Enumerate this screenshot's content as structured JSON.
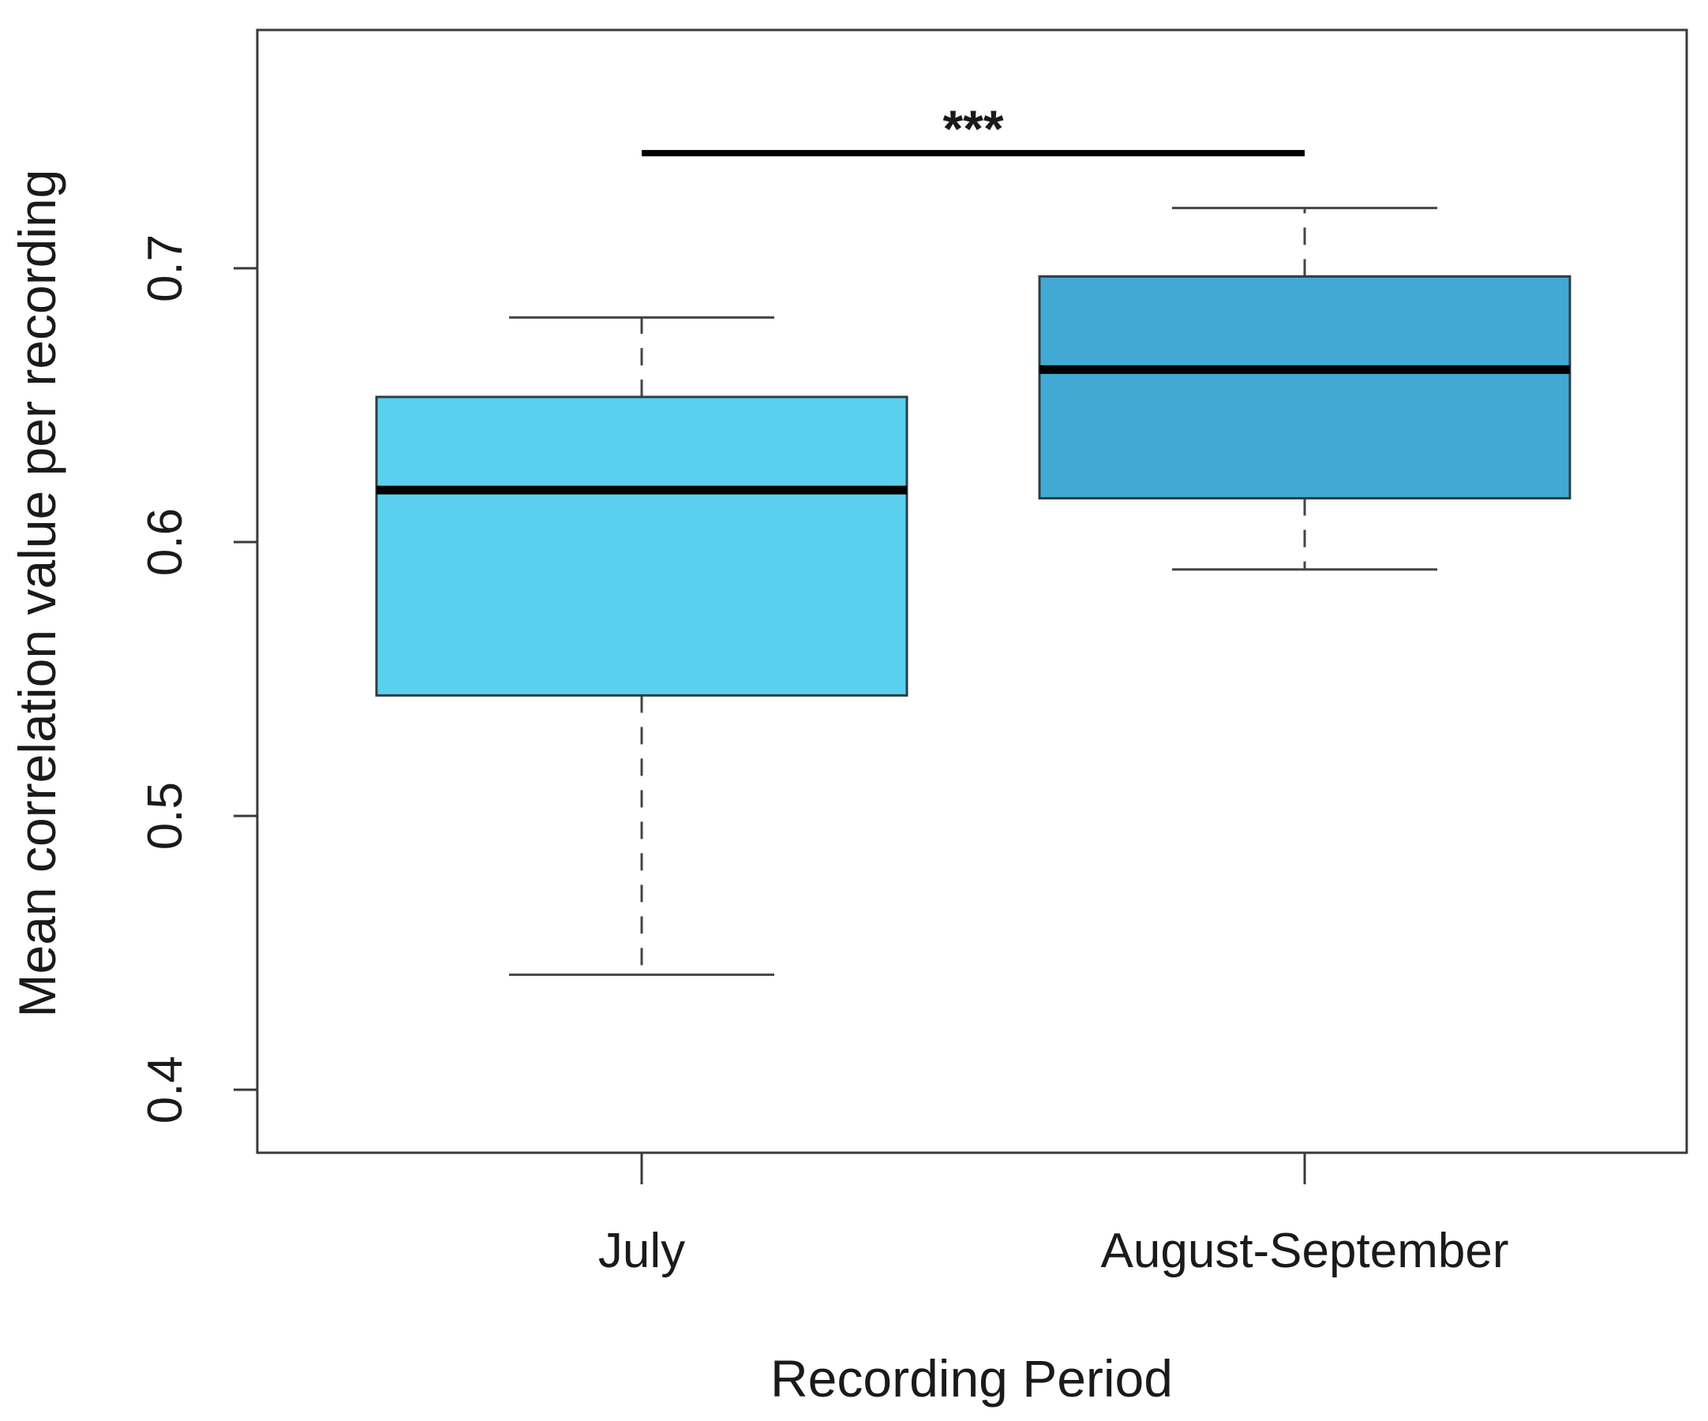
{
  "chart_data": {
    "type": "box",
    "title": "",
    "xlabel": "Recording Period",
    "ylabel": "Mean correlation value per recording",
    "ylim": [
      0.377,
      0.787
    ],
    "yticks": [
      0.4,
      0.5,
      0.6,
      0.7
    ],
    "ytick_labels": [
      "0.4",
      "0.5",
      "0.6",
      "0.7"
    ],
    "grid": false,
    "legend": "none",
    "categories": [
      "July",
      "August-September"
    ],
    "boxes": [
      {
        "category": "July",
        "whisker_low": 0.442,
        "q1": 0.544,
        "median": 0.619,
        "q3": 0.653,
        "whisker_high": 0.682,
        "color": "#5ad0ee"
      },
      {
        "category": "August-September",
        "whisker_low": 0.59,
        "q1": 0.616,
        "median": 0.663,
        "q3": 0.697,
        "whisker_high": 0.722,
        "color": "#41a9d3"
      }
    ],
    "significance": {
      "from": "July",
      "to": "August-September",
      "label": "***",
      "y": 0.742
    }
  }
}
